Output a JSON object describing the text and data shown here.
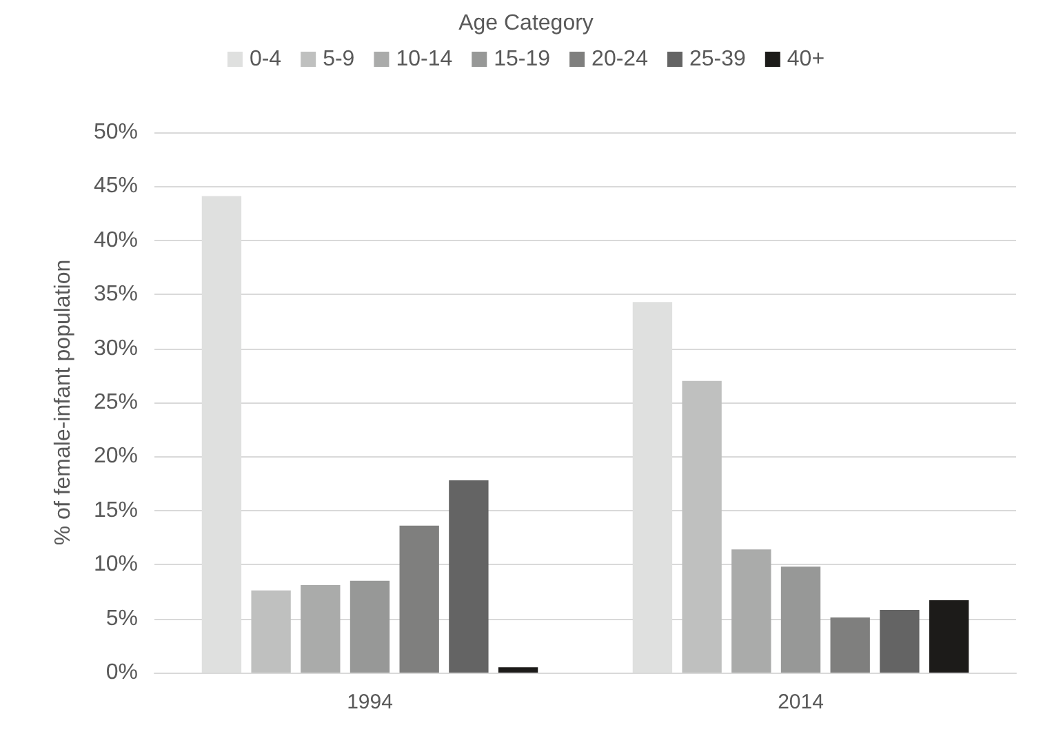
{
  "chart_data": {
    "type": "bar",
    "legend_title": "Age Category",
    "ylabel": "% of female-infant population",
    "categories": [
      "1994",
      "2014"
    ],
    "series": [
      {
        "name": "0-4",
        "color": "#dfe0df",
        "values": [
          44.1,
          34.3
        ]
      },
      {
        "name": "5-9",
        "color": "#bfc0bf",
        "values": [
          7.6,
          27.0
        ]
      },
      {
        "name": "10-14",
        "color": "#aaabaa",
        "values": [
          8.1,
          11.4
        ]
      },
      {
        "name": "15-19",
        "color": "#979897",
        "values": [
          8.5,
          9.8
        ]
      },
      {
        "name": "20-24",
        "color": "#7f7f7e",
        "values": [
          13.6,
          5.1
        ]
      },
      {
        "name": "25-39",
        "color": "#646464",
        "values": [
          17.8,
          5.8
        ]
      },
      {
        "name": "40+",
        "color": "#1c1b19",
        "values": [
          0.5,
          6.7
        ]
      }
    ],
    "ylim": [
      0,
      50
    ],
    "yticks": [
      {
        "value": 0,
        "label": "0%"
      },
      {
        "value": 5,
        "label": "5%"
      },
      {
        "value": 10,
        "label": "10%"
      },
      {
        "value": 15,
        "label": "15%"
      },
      {
        "value": 20,
        "label": "20%"
      },
      {
        "value": 25,
        "label": "25%"
      },
      {
        "value": 30,
        "label": "30%"
      },
      {
        "value": 35,
        "label": "35%"
      },
      {
        "value": 40,
        "label": "40%"
      },
      {
        "value": 45,
        "label": "45%"
      },
      {
        "value": 50,
        "label": "50%"
      }
    ],
    "grid": "y",
    "legend": "top"
  }
}
